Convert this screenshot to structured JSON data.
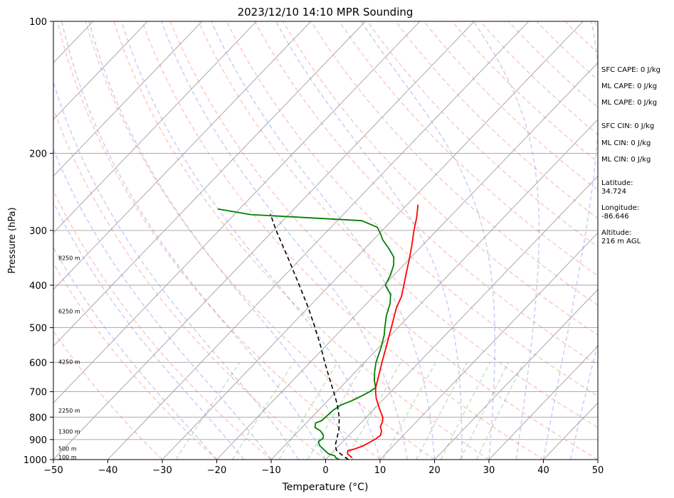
{
  "chart_data": {
    "type": "skew-t",
    "title": "2023/12/10 14:10 MPR Sounding",
    "xlabel": "Temperature (°C)",
    "ylabel": "Pressure (hPa)",
    "xlim": [
      -50,
      50
    ],
    "ylim": [
      1000,
      100
    ],
    "y_scale": "log",
    "grid": true,
    "x_ticks": [
      "−50",
      "−40",
      "−30",
      "−20",
      "−10",
      "0",
      "10",
      "20",
      "30",
      "40",
      "50"
    ],
    "y_ticks": [
      "100",
      "200",
      "300",
      "400",
      "500",
      "600",
      "700",
      "800",
      "900",
      "1000"
    ],
    "height_labels": [
      {
        "label": "100 m",
        "p": 990
      },
      {
        "label": "500 m",
        "p": 948
      },
      {
        "label": "1300 m",
        "p": 866
      },
      {
        "label": "2250 m",
        "p": 775
      },
      {
        "label": "4250 m",
        "p": 600
      },
      {
        "label": "6250 m",
        "p": 460
      },
      {
        "label": "8250 m",
        "p": 348
      }
    ],
    "series": [
      {
        "role": "temperature",
        "color": "#ff0000",
        "points": [
          [
            990,
            4.5
          ],
          [
            970,
            3.0
          ],
          [
            955,
            2.5
          ],
          [
            945,
            3.5
          ],
          [
            930,
            4.5
          ],
          [
            900,
            5.5
          ],
          [
            880,
            5.8
          ],
          [
            860,
            5.2
          ],
          [
            840,
            4.2
          ],
          [
            820,
            3.8
          ],
          [
            800,
            3.0
          ],
          [
            775,
            1.5
          ],
          [
            750,
            0.0
          ],
          [
            725,
            -1.5
          ],
          [
            700,
            -2.8
          ],
          [
            685,
            -3.5
          ],
          [
            650,
            -4.8
          ],
          [
            600,
            -6.8
          ],
          [
            550,
            -8.9
          ],
          [
            500,
            -11.2
          ],
          [
            450,
            -13.8
          ],
          [
            425,
            -14.8
          ],
          [
            400,
            -16.4
          ],
          [
            375,
            -18.1
          ],
          [
            350,
            -19.9
          ],
          [
            325,
            -21.9
          ],
          [
            300,
            -24.2
          ],
          [
            280,
            -26.0
          ],
          [
            262,
            -28.0
          ]
        ]
      },
      {
        "role": "dewpoint",
        "color": "#008000",
        "points": [
          [
            1000,
            2.5
          ],
          [
            990,
            1.5
          ],
          [
            980,
            1.0
          ],
          [
            970,
            -0.5
          ],
          [
            950,
            -2.0
          ],
          [
            930,
            -3.5
          ],
          [
            910,
            -4.5
          ],
          [
            895,
            -4.2
          ],
          [
            880,
            -4.7
          ],
          [
            860,
            -6.0
          ],
          [
            845,
            -7.6
          ],
          [
            825,
            -8.3
          ],
          [
            815,
            -7.6
          ],
          [
            800,
            -7.5
          ],
          [
            770,
            -7.3
          ],
          [
            750,
            -6.8
          ],
          [
            735,
            -5.6
          ],
          [
            715,
            -4.6
          ],
          [
            700,
            -3.9
          ],
          [
            685,
            -3.5
          ],
          [
            660,
            -5.0
          ],
          [
            630,
            -6.5
          ],
          [
            600,
            -7.9
          ],
          [
            570,
            -9.0
          ],
          [
            550,
            -9.8
          ],
          [
            520,
            -11.2
          ],
          [
            500,
            -12.4
          ],
          [
            470,
            -14.2
          ],
          [
            440,
            -15.7
          ],
          [
            420,
            -17.2
          ],
          [
            400,
            -19.8
          ],
          [
            380,
            -20.6
          ],
          [
            360,
            -21.8
          ],
          [
            345,
            -23.2
          ],
          [
            330,
            -25.6
          ],
          [
            315,
            -28.3
          ],
          [
            305,
            -29.8
          ],
          [
            295,
            -31.5
          ],
          [
            285,
            -35.5
          ],
          [
            276,
            -57.0
          ],
          [
            268,
            -64.0
          ]
        ]
      },
      {
        "role": "parcel",
        "color": "#000000",
        "points": [
          [
            1000,
            4.2
          ],
          [
            980,
            2.5
          ],
          [
            955,
            0.5
          ],
          [
            930,
            -0.7
          ],
          [
            900,
            -1.5
          ],
          [
            850,
            -3.0
          ],
          [
            800,
            -5.0
          ],
          [
            750,
            -7.5
          ],
          [
            700,
            -10.5
          ],
          [
            650,
            -13.8
          ],
          [
            600,
            -17.3
          ],
          [
            550,
            -21.0
          ],
          [
            500,
            -25.2
          ],
          [
            450,
            -30.0
          ],
          [
            400,
            -35.6
          ],
          [
            350,
            -42.0
          ],
          [
            300,
            -49.5
          ],
          [
            275,
            -53.5
          ]
        ]
      }
    ],
    "annotations": {
      "cape_cin": [
        "SFC CAPE: 0 J/kg",
        "ML CAPE: 0 J/kg",
        "ML CAPE: 0 J/kg",
        "SFC CIN: 0 J/kg",
        "ML CIN: 0 J/kg",
        "ML CIN: 0 J/kg"
      ],
      "location": [
        "Latitude:",
        "34.724",
        "Longitude:",
        "-86.646",
        "Altitude:",
        "216 m AGL"
      ]
    }
  }
}
